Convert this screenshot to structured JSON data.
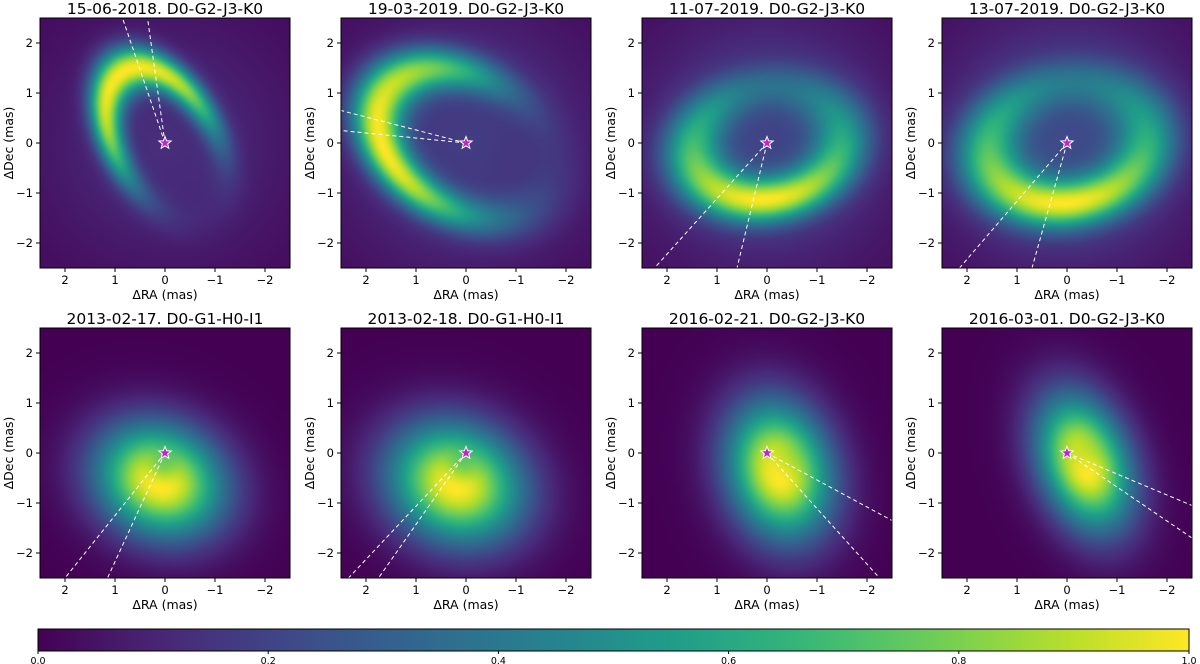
{
  "chart_data": {
    "type": "heatmap",
    "colormap": "viridis",
    "colorbar": {
      "range": [
        0.0,
        1.0
      ],
      "ticks": [
        0.0,
        0.2,
        0.4,
        0.6,
        0.8,
        1.0
      ],
      "tick_labels": [
        "0.0",
        "0.2",
        "0.4",
        "0.6",
        "0.8",
        "1.0"
      ]
    },
    "panels": [
      {
        "title": "15-06-2018. D0-G2-J3-K0",
        "xlabel": "ΔRA (mas)",
        "ylabel": "ΔDec (mas)",
        "xlim": [
          2.5,
          -2.5
        ],
        "ylim": [
          -2.5,
          2.5
        ],
        "xticks": [
          2,
          1,
          0,
          -1,
          -2
        ],
        "xtick_labels": [
          "2",
          "1",
          "0",
          "−1",
          "−2"
        ],
        "yticks": [
          -2,
          -1,
          0,
          1,
          2
        ],
        "ytick_labels": [
          "−2",
          "−1",
          "0",
          "1",
          "2"
        ],
        "model": {
          "kind": "ring",
          "radius": 1.65,
          "width": 0.32,
          "bright_pa": 30,
          "contrast": 0.95,
          "inc": 0.4,
          "inc_pa": 30,
          "base": 0.12
        },
        "star": [
          0,
          0
        ],
        "lines": [
          [
            0.85,
            2.5
          ],
          [
            0.35,
            2.5
          ]
        ]
      },
      {
        "title": "19-03-2019. D0-G2-J3-K0",
        "xlabel": "ΔRA (mas)",
        "ylabel": "ΔDec (mas)",
        "xlim": [
          2.5,
          -2.5
        ],
        "ylim": [
          -2.5,
          2.5
        ],
        "xticks": [
          2,
          1,
          0,
          -1,
          -2
        ],
        "xtick_labels": [
          "2",
          "1",
          "0",
          "−1",
          "−2"
        ],
        "yticks": [
          -2,
          -1,
          0,
          1,
          2
        ],
        "ytick_labels": [
          "−2",
          "−1",
          "0",
          "1",
          "2"
        ],
        "model": {
          "kind": "ring",
          "radius": 1.9,
          "width": 0.38,
          "bright_pa": 85,
          "contrast": 0.9,
          "inc": 0.3,
          "inc_pa": 60,
          "base": 0.18
        },
        "star": [
          0,
          0
        ],
        "lines": [
          [
            2.5,
            0.65
          ],
          [
            2.5,
            0.25
          ]
        ]
      },
      {
        "title": "11-07-2019. D0-G2-J3-K0",
        "xlabel": "ΔRA (mas)",
        "ylabel": "ΔDec (mas)",
        "xlim": [
          2.5,
          -2.5
        ],
        "ylim": [
          -2.5,
          2.5
        ],
        "xticks": [
          2,
          1,
          0,
          -1,
          -2
        ],
        "xtick_labels": [
          "2",
          "1",
          "0",
          "−1",
          "−2"
        ],
        "yticks": [
          -2,
          -1,
          0,
          1,
          2
        ],
        "ytick_labels": [
          "−2",
          "−1",
          "0",
          "1",
          "2"
        ],
        "model": {
          "kind": "ring",
          "radius": 1.5,
          "width": 0.42,
          "bright_pa": 175,
          "contrast": 0.6,
          "inc": 0.25,
          "inc_pa": 100,
          "base": 0.22
        },
        "star": [
          0,
          0
        ],
        "lines": [
          [
            2.25,
            -2.5
          ],
          [
            0.6,
            -2.5
          ]
        ]
      },
      {
        "title": "13-07-2019. D0-G2-J3-K0",
        "xlabel": "ΔRA (mas)",
        "ylabel": "ΔDec (mas)",
        "xlim": [
          2.5,
          -2.5
        ],
        "ylim": [
          -2.5,
          2.5
        ],
        "xticks": [
          2,
          1,
          0,
          -1,
          -2
        ],
        "xtick_labels": [
          "2",
          "1",
          "0",
          "−1",
          "−2"
        ],
        "yticks": [
          -2,
          -1,
          0,
          1,
          2
        ],
        "ytick_labels": [
          "−2",
          "−1",
          "0",
          "1",
          "2"
        ],
        "model": {
          "kind": "ring",
          "radius": 1.6,
          "width": 0.45,
          "bright_pa": 175,
          "contrast": 0.55,
          "inc": 0.25,
          "inc_pa": 100,
          "base": 0.25
        },
        "star": [
          0,
          0
        ],
        "lines": [
          [
            2.15,
            -2.5
          ],
          [
            0.7,
            -2.5
          ]
        ]
      },
      {
        "title": "2013-02-17. D0-G1-H0-I1",
        "xlabel": "ΔRA (mas)",
        "ylabel": "ΔDec (mas)",
        "xlim": [
          2.5,
          -2.5
        ],
        "ylim": [
          -2.5,
          2.5
        ],
        "xticks": [
          2,
          1,
          0,
          -1,
          -2
        ],
        "xtick_labels": [
          "2",
          "1",
          "0",
          "−1",
          "−2"
        ],
        "yticks": [
          -2,
          -1,
          0,
          1,
          2
        ],
        "ytick_labels": [
          "−2",
          "−1",
          "0",
          "1",
          "2"
        ],
        "model": {
          "kind": "blob",
          "cx": 0.1,
          "cy": -0.55,
          "sx": 0.9,
          "sy": 0.75,
          "theta": 25,
          "hole": [
            0.05,
            -0.3
          ],
          "hole_s": 0.22,
          "hole_d": 0.18
        },
        "star": [
          0,
          0
        ],
        "lines": [
          [
            2.0,
            -2.5
          ],
          [
            1.15,
            -2.5
          ]
        ]
      },
      {
        "title": "2013-02-18. D0-G1-H0-I1",
        "xlabel": "ΔRA (mas)",
        "ylabel": "ΔDec (mas)",
        "xlim": [
          2.5,
          -2.5
        ],
        "ylim": [
          -2.5,
          2.5
        ],
        "xticks": [
          2,
          1,
          0,
          -1,
          -2
        ],
        "xtick_labels": [
          "2",
          "1",
          "0",
          "−1",
          "−2"
        ],
        "yticks": [
          -2,
          -1,
          0,
          1,
          2
        ],
        "ytick_labels": [
          "−2",
          "−1",
          "0",
          "1",
          "2"
        ],
        "model": {
          "kind": "blob",
          "cx": 0.2,
          "cy": -0.6,
          "sx": 0.95,
          "sy": 0.8,
          "theta": 25,
          "hole": [
            0.1,
            -0.3
          ],
          "hole_s": 0.22,
          "hole_d": 0.15
        },
        "star": [
          0,
          0
        ],
        "lines": [
          [
            2.35,
            -2.5
          ],
          [
            1.75,
            -2.5
          ]
        ]
      },
      {
        "title": "2016-02-21. D0-G2-J3-K0",
        "xlabel": "ΔRA (mas)",
        "ylabel": "ΔDec (mas)",
        "xlim": [
          2.5,
          -2.5
        ],
        "ylim": [
          -2.5,
          2.5
        ],
        "xticks": [
          2,
          1,
          0,
          -1,
          -2
        ],
        "xtick_labels": [
          "2",
          "1",
          "0",
          "−1",
          "−2"
        ],
        "yticks": [
          -2,
          -1,
          0,
          1,
          2
        ],
        "ytick_labels": [
          "−2",
          "−1",
          "0",
          "1",
          "2"
        ],
        "model": {
          "kind": "blob",
          "cx": -0.25,
          "cy": -0.35,
          "sx": 0.7,
          "sy": 0.95,
          "theta": -15,
          "hole": [
            -0.35,
            -0.2
          ],
          "hole_s": 0.25,
          "hole_d": 0.1
        },
        "star": [
          0,
          0
        ],
        "lines": [
          [
            -2.5,
            -1.35
          ],
          [
            -2.25,
            -2.5
          ]
        ]
      },
      {
        "title": "2016-03-01. D0-G2-J3-K0",
        "xlabel": "ΔRA (mas)",
        "ylabel": "ΔDec (mas)",
        "xlim": [
          2.5,
          -2.5
        ],
        "ylim": [
          -2.5,
          2.5
        ],
        "xticks": [
          2,
          1,
          0,
          -1,
          -2
        ],
        "xtick_labels": [
          "2",
          "1",
          "0",
          "−1",
          "−2"
        ],
        "yticks": [
          -2,
          -1,
          0,
          1,
          2
        ],
        "ytick_labels": [
          "−2",
          "−1",
          "0",
          "1",
          "2"
        ],
        "model": {
          "kind": "blob",
          "cx": -0.35,
          "cy": -0.2,
          "sx": 0.6,
          "sy": 0.95,
          "theta": -20,
          "hole": [
            -0.35,
            -0.05
          ],
          "hole_s": 0.25,
          "hole_d": 0.12
        },
        "star": [
          0,
          0
        ],
        "lines": [
          [
            -2.5,
            -1.05
          ],
          [
            -2.5,
            -1.7
          ]
        ]
      }
    ]
  }
}
